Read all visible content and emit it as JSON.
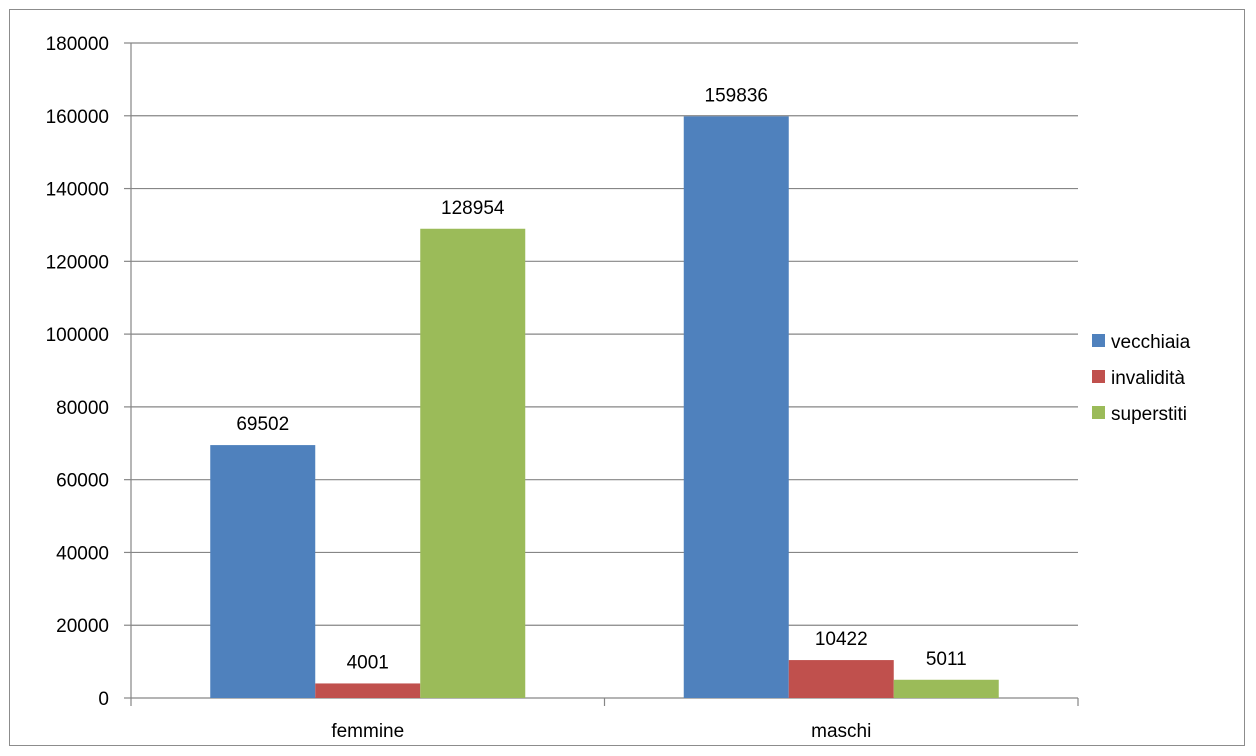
{
  "chart_data": {
    "type": "bar",
    "categories": [
      "femmine",
      "maschi"
    ],
    "series": [
      {
        "name": "vecchiaia",
        "values": [
          69502,
          159836
        ],
        "color": "#4f81bd"
      },
      {
        "name": "invalidità",
        "values": [
          4001,
          10422
        ],
        "color": "#c0504d"
      },
      {
        "name": "superstiti",
        "values": [
          128954,
          5011
        ],
        "color": "#9bbb59"
      }
    ],
    "ylim": [
      0,
      180000
    ],
    "yticks": [
      0,
      20000,
      40000,
      60000,
      80000,
      100000,
      120000,
      140000,
      160000,
      180000
    ],
    "grid": true,
    "legend_position": "right",
    "data_labels": true
  }
}
